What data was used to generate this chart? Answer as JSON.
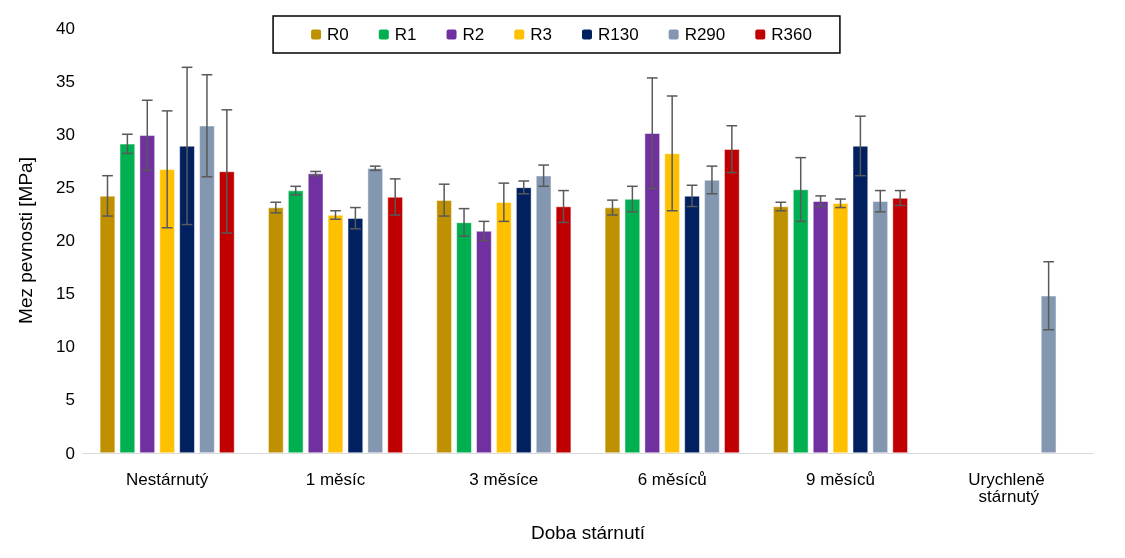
{
  "chart_data": {
    "type": "bar",
    "xlabel": "Doba stárnutí",
    "ylabel": "Mez pevnosti [MPa]",
    "categories": [
      "Nestárnutý",
      "1 měsíc",
      "3 měsíce",
      "6 měsíců",
      "9 měsíců",
      "Urychleně stárnutý"
    ],
    "ylim": [
      0,
      40
    ],
    "yticks": [
      0,
      5,
      10,
      15,
      20,
      25,
      30,
      35,
      40
    ],
    "grid": false,
    "legend": "top",
    "series": [
      {
        "name": "R0",
        "color": "#bf9000",
        "values": [
          24.2,
          23.1,
          23.8,
          23.1,
          23.2,
          null
        ],
        "errors": [
          1.9,
          0.5,
          1.5,
          0.7,
          0.4,
          null
        ]
      },
      {
        "name": "R1",
        "color": "#00b050",
        "values": [
          29.1,
          24.7,
          21.7,
          23.9,
          24.8,
          null
        ],
        "errors": [
          0.9,
          0.4,
          1.3,
          1.2,
          3.0,
          null
        ]
      },
      {
        "name": "R2",
        "color": "#7030a0",
        "values": [
          29.9,
          26.3,
          20.9,
          30.1,
          23.7,
          null
        ],
        "errors": [
          3.3,
          0.2,
          0.9,
          5.2,
          0.5,
          null
        ]
      },
      {
        "name": "R3",
        "color": "#ffc000",
        "values": [
          26.7,
          22.4,
          23.6,
          28.2,
          23.5,
          null
        ],
        "errors": [
          5.5,
          0.4,
          1.8,
          5.4,
          0.4,
          null
        ]
      },
      {
        "name": "R130",
        "color": "#002060",
        "values": [
          28.9,
          22.1,
          25.0,
          24.2,
          28.9,
          null
        ],
        "errors": [
          7.4,
          1.0,
          0.6,
          1.0,
          2.8,
          null
        ]
      },
      {
        "name": "R290",
        "color": "#8497b0",
        "values": [
          30.8,
          26.8,
          26.1,
          25.7,
          23.7,
          14.8
        ],
        "errors": [
          4.8,
          0.2,
          1.0,
          1.3,
          1.0,
          3.2
        ]
      },
      {
        "name": "R360",
        "color": "#c00000",
        "values": [
          26.5,
          24.1,
          23.2,
          28.6,
          24.0,
          null
        ],
        "errors": [
          5.8,
          1.7,
          1.5,
          2.2,
          0.7,
          null
        ]
      }
    ]
  }
}
